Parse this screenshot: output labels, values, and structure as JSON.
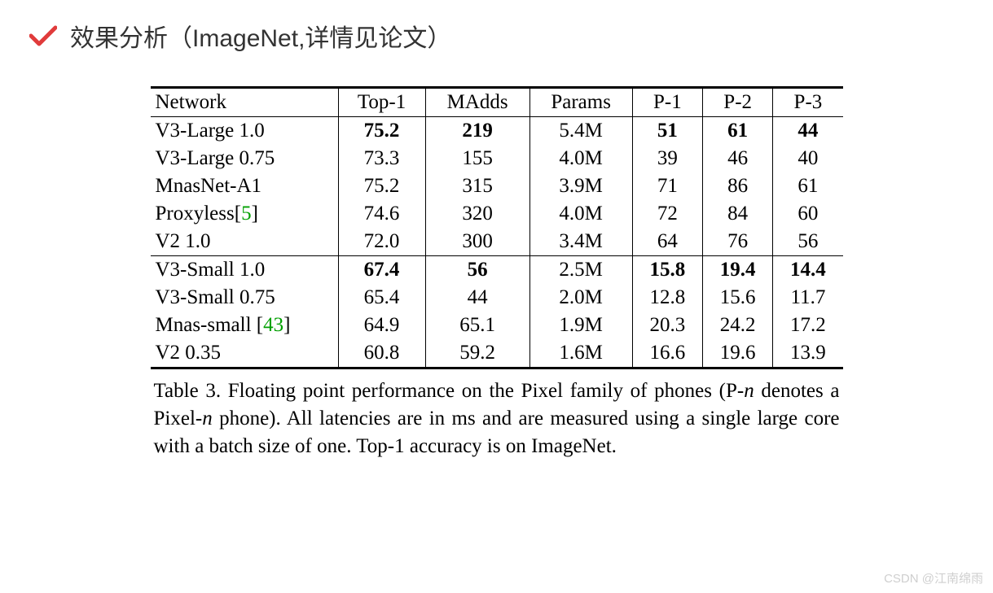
{
  "heading": {
    "text": "效果分析（ImageNet,详情见论文）",
    "check_color": "#e03b3b"
  },
  "table": {
    "columns": [
      "Network",
      "Top-1",
      "MAdds",
      "Params",
      "P-1",
      "P-2",
      "P-3"
    ],
    "rows": [
      {
        "cells": [
          "V3-Large 1.0",
          "75.2",
          "219",
          "5.4M",
          "51",
          "61",
          "44"
        ],
        "bold": [
          false,
          true,
          true,
          false,
          true,
          true,
          true
        ],
        "section_end": false
      },
      {
        "cells": [
          "V3-Large 0.75",
          "73.3",
          "155",
          "4.0M",
          "39",
          "46",
          "40"
        ],
        "bold": [
          false,
          false,
          false,
          false,
          false,
          false,
          false
        ],
        "section_end": false
      },
      {
        "cells": [
          "MnasNet-A1",
          "75.2",
          "315",
          "3.9M",
          "71",
          "86",
          "61"
        ],
        "bold": [
          false,
          false,
          false,
          false,
          false,
          false,
          false
        ],
        "section_end": false
      },
      {
        "cells_html": [
          {
            "text": "Proxyless[",
            "ref": "5",
            "after": "]"
          },
          "74.6",
          "320",
          "4.0M",
          "72",
          "84",
          "60"
        ],
        "bold": [
          false,
          false,
          false,
          false,
          false,
          false,
          false
        ],
        "section_end": false
      },
      {
        "cells": [
          "V2 1.0",
          "72.0",
          "300",
          "3.4M",
          "64",
          "76",
          "56"
        ],
        "bold": [
          false,
          false,
          false,
          false,
          false,
          false,
          false
        ],
        "section_end": true
      },
      {
        "cells": [
          "V3-Small 1.0",
          "67.4",
          "56",
          "2.5M",
          "15.8",
          "19.4",
          "14.4"
        ],
        "bold": [
          false,
          true,
          true,
          false,
          true,
          true,
          true
        ],
        "section_end": false
      },
      {
        "cells": [
          "V3-Small 0.75",
          "65.4",
          "44",
          "2.0M",
          "12.8",
          "15.6",
          "11.7"
        ],
        "bold": [
          false,
          false,
          false,
          false,
          false,
          false,
          false
        ],
        "section_end": false
      },
      {
        "cells_html": [
          {
            "text": "Mnas-small [",
            "ref": "43",
            "after": "]"
          },
          "64.9",
          "65.1",
          "1.9M",
          "20.3",
          "24.2",
          "17.2"
        ],
        "bold": [
          false,
          false,
          false,
          false,
          false,
          false,
          false
        ],
        "section_end": false
      },
      {
        "cells": [
          "V2 0.35",
          "60.8",
          "59.2",
          "1.6M",
          "16.6",
          "19.6",
          "13.9"
        ],
        "bold": [
          false,
          false,
          false,
          false,
          false,
          false,
          false
        ],
        "section_end": false,
        "last": true
      }
    ],
    "border_color": "#000000",
    "ref_color": "#00a000",
    "font_family": "Times New Roman",
    "font_size_pt": 19
  },
  "caption": {
    "prefix": "Table 3. Floating point performance on the Pixel family of phones (P-",
    "n": "n",
    "mid": " denotes a Pixel-",
    "n2": "n",
    "suffix": " phone).  All latencies are in ms and are measured using a single large core with a batch size of one. Top-1 accuracy is on ImageNet."
  },
  "watermark": "CSDN @江南绵雨"
}
